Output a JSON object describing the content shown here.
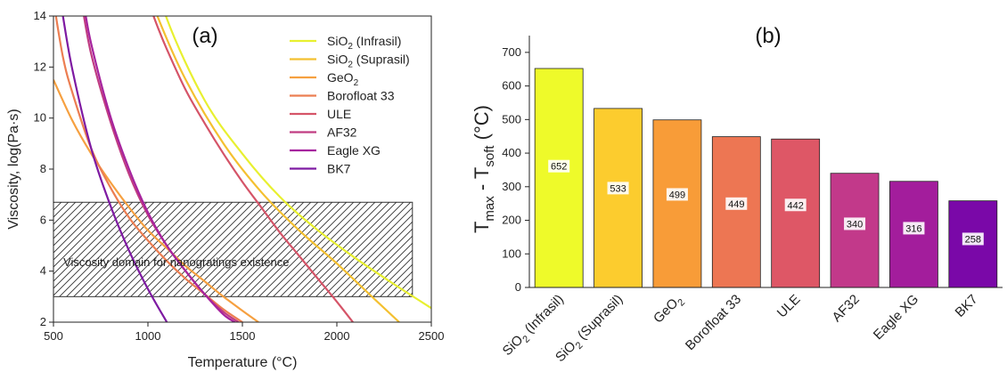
{
  "chart_data": [
    {
      "type": "line",
      "panel_label": "(a)",
      "xlabel": "Temperature (°C)",
      "ylabel": "Viscosity, log(Pa·s)",
      "xlim": [
        500,
        2500
      ],
      "ylim": [
        2,
        14
      ],
      "xticks": [
        500,
        1000,
        1500,
        2000,
        2500
      ],
      "yticks": [
        2,
        4,
        6,
        8,
        10,
        12,
        14
      ],
      "grid": false,
      "legend_position": "top-right",
      "series": [
        {
          "name": "SiO2 (Infrasil)",
          "name_parts": [
            "SiO",
            "2",
            " (Infrasil)"
          ],
          "color": "#e8f030",
          "x": [
            1000,
            1100,
            1300,
            1500,
            1700,
            1900,
            2100,
            2300,
            2500
          ],
          "y": [
            16.7,
            13.9,
            10.7,
            8.6,
            6.9,
            5.6,
            4.5,
            3.5,
            2.55
          ]
        },
        {
          "name": "SiO2 (Suprasil)",
          "name_parts": [
            "SiO",
            "2",
            " (Suprasil)"
          ],
          "color": "#f4c030",
          "x": [
            1000,
            1050,
            1200,
            1400,
            1600,
            1800,
            2000,
            2200,
            2330
          ],
          "y": [
            15.2,
            14.0,
            11.5,
            9.0,
            7.1,
            5.6,
            4.3,
            2.9,
            2.0
          ]
        },
        {
          "name": "GeO2",
          "name_parts": [
            "GeO",
            "2",
            ""
          ],
          "color": "#f6a040",
          "x": [
            500,
            600,
            700,
            800,
            900,
            1000,
            1100,
            1200,
            1300,
            1400,
            1500,
            1585
          ],
          "y": [
            11.5,
            9.9,
            8.6,
            7.5,
            6.5,
            5.6,
            4.9,
            4.2,
            3.6,
            3.0,
            2.45,
            2.0
          ]
        },
        {
          "name": "Borofloat 33",
          "name_parts": [
            "Borofloat 33",
            "",
            ""
          ],
          "color": "#ec7e52",
          "x": [
            500,
            550,
            600,
            700,
            800,
            900,
            1000,
            1100,
            1200,
            1300,
            1400,
            1500
          ],
          "y": [
            14.6,
            12.4,
            11.0,
            8.8,
            7.3,
            6.1,
            5.2,
            4.4,
            3.7,
            3.1,
            2.5,
            2.0
          ]
        },
        {
          "name": "ULE",
          "name_parts": [
            "ULE",
            "",
            ""
          ],
          "color": "#d55468",
          "x": [
            1000,
            1050,
            1100,
            1200,
            1300,
            1400,
            1500,
            1600,
            1700,
            1800,
            1900,
            2000,
            2085
          ],
          "y": [
            14.6,
            13.6,
            12.7,
            11.1,
            9.8,
            8.6,
            7.5,
            6.5,
            5.5,
            4.6,
            3.7,
            2.8,
            2.0
          ]
        },
        {
          "name": "AF32",
          "name_parts": [
            "AF32",
            "",
            ""
          ],
          "color": "#c03c82",
          "x": [
            650,
            700,
            800,
            900,
            1000,
            1100,
            1200,
            1300,
            1400,
            1480
          ],
          "y": [
            14.5,
            12.5,
            9.9,
            7.8,
            6.2,
            5.0,
            4.0,
            3.1,
            2.4,
            2.0
          ]
        },
        {
          "name": "Eagle XG",
          "name_parts": [
            "Eagle XG",
            "",
            ""
          ],
          "color": "#a6239e",
          "x": [
            660,
            700,
            800,
            900,
            1000,
            1100,
            1200,
            1300,
            1400,
            1460
          ],
          "y": [
            14.5,
            12.9,
            10.1,
            8.0,
            6.3,
            5.0,
            4.0,
            3.1,
            2.3,
            2.0
          ]
        },
        {
          "name": "BK7",
          "name_parts": [
            "BK7",
            "",
            ""
          ],
          "color": "#7e1aa2",
          "x": [
            550,
            600,
            700,
            800,
            900,
            1000,
            1100
          ],
          "y": [
            14.0,
            11.9,
            8.8,
            6.6,
            4.8,
            3.3,
            2.0
          ]
        }
      ],
      "annotation": {
        "text": "Viscosity domain for nanogratings existence",
        "x_range": [
          500,
          2400
        ],
        "y_range": [
          3.0,
          6.7
        ]
      }
    },
    {
      "type": "bar",
      "panel_label": "(b)",
      "ylabel_parts": [
        "T",
        "max",
        " - T",
        "soft",
        " (°C)"
      ],
      "ylim": [
        0,
        750
      ],
      "yticks": [
        0,
        100,
        200,
        300,
        400,
        500,
        600,
        700
      ],
      "grid": false,
      "categories": [
        {
          "name": "SiO2 (Infrasil)",
          "parts": [
            "SiO",
            "2",
            " (Infrasil)"
          ]
        },
        {
          "name": "SiO2 (Suprasil)",
          "parts": [
            "SiO",
            "2",
            " (Suprasil)"
          ]
        },
        {
          "name": "GeO2",
          "parts": [
            "GeO",
            "2",
            ""
          ]
        },
        {
          "name": "Borofloat 33",
          "parts": [
            "Borofloat 33",
            "",
            ""
          ]
        },
        {
          "name": "ULE",
          "parts": [
            "ULE",
            "",
            ""
          ]
        },
        {
          "name": "AF32",
          "parts": [
            "AF32",
            "",
            ""
          ]
        },
        {
          "name": "Eagle XG",
          "parts": [
            "Eagle XG",
            "",
            ""
          ]
        },
        {
          "name": "BK7",
          "parts": [
            "BK7",
            "",
            ""
          ]
        }
      ],
      "values": [
        652,
        533,
        499,
        449,
        442,
        340,
        316,
        258
      ],
      "colors": [
        "#eefa2a",
        "#fccc2e",
        "#f89c38",
        "#ed7653",
        "#de5766",
        "#c2398a",
        "#a31d9c",
        "#7a08a8"
      ]
    }
  ]
}
